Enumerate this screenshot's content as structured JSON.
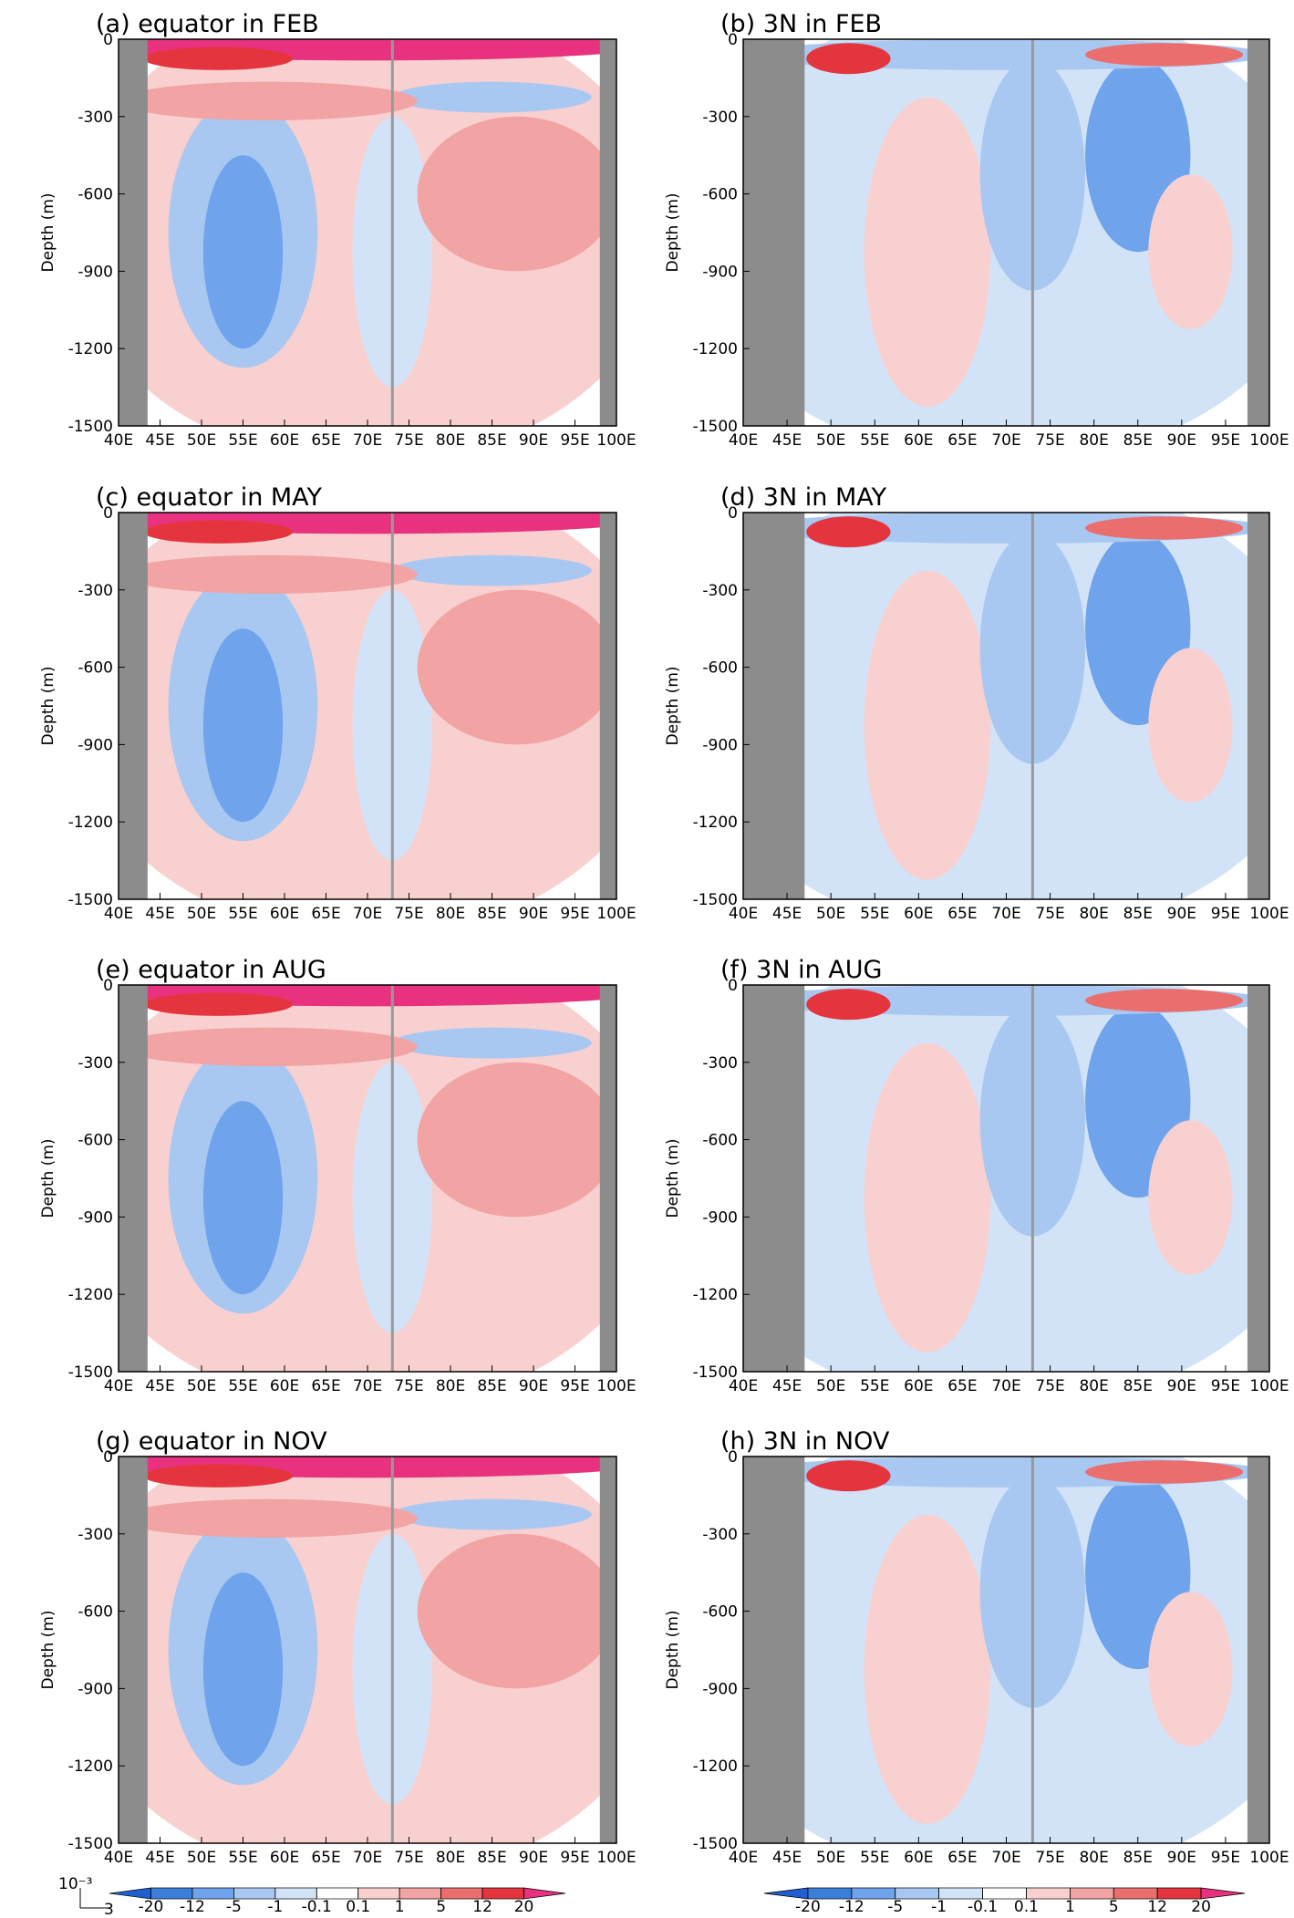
{
  "chart_data": [
    {
      "type": "contour",
      "title": "(a) equator in FEB",
      "ylabel": "Depth (m)",
      "xlim": [
        40,
        100
      ],
      "ylim": [
        -1500,
        0
      ],
      "xticks": [
        {
          "value": 40,
          "label": "40E"
        },
        {
          "value": 45,
          "label": "45E"
        },
        {
          "value": 50,
          "label": "50E"
        },
        {
          "value": 55,
          "label": "55E"
        },
        {
          "value": 60,
          "label": "60E"
        },
        {
          "value": 65,
          "label": "65E"
        },
        {
          "value": 70,
          "label": "70E"
        },
        {
          "value": 75,
          "label": "75E"
        },
        {
          "value": 80,
          "label": "80E"
        },
        {
          "value": 85,
          "label": "85E"
        },
        {
          "value": 90,
          "label": "90E"
        },
        {
          "value": 95,
          "label": "95E"
        },
        {
          "value": 100,
          "label": "100E"
        }
      ],
      "yticks": [
        0,
        -300,
        -600,
        -900,
        -1200,
        -1500
      ]
    },
    {
      "type": "contour",
      "title": "(b) 3N in FEB",
      "ylabel": "Depth (m)",
      "xlim": [
        40,
        100
      ],
      "ylim": [
        -1500,
        0
      ],
      "xticks": [
        {
          "value": 40,
          "label": "40E"
        },
        {
          "value": 45,
          "label": "45E"
        },
        {
          "value": 50,
          "label": "50E"
        },
        {
          "value": 55,
          "label": "55E"
        },
        {
          "value": 60,
          "label": "60E"
        },
        {
          "value": 65,
          "label": "65E"
        },
        {
          "value": 70,
          "label": "70E"
        },
        {
          "value": 75,
          "label": "75E"
        },
        {
          "value": 80,
          "label": "80E"
        },
        {
          "value": 85,
          "label": "85E"
        },
        {
          "value": 90,
          "label": "90E"
        },
        {
          "value": 95,
          "label": "95E"
        },
        {
          "value": 100,
          "label": "100E"
        }
      ],
      "yticks": [
        0,
        -300,
        -600,
        -900,
        -1200,
        -1500
      ]
    },
    {
      "type": "contour",
      "title": "(c) equator in MAY",
      "ylabel": "Depth (m)",
      "xlim": [
        40,
        100
      ],
      "ylim": [
        -1500,
        0
      ],
      "xticks": [
        {
          "value": 40,
          "label": "40E"
        },
        {
          "value": 45,
          "label": "45E"
        },
        {
          "value": 50,
          "label": "50E"
        },
        {
          "value": 55,
          "label": "55E"
        },
        {
          "value": 60,
          "label": "60E"
        },
        {
          "value": 65,
          "label": "65E"
        },
        {
          "value": 70,
          "label": "70E"
        },
        {
          "value": 75,
          "label": "75E"
        },
        {
          "value": 80,
          "label": "80E"
        },
        {
          "value": 85,
          "label": "85E"
        },
        {
          "value": 90,
          "label": "90E"
        },
        {
          "value": 95,
          "label": "95E"
        },
        {
          "value": 100,
          "label": "100E"
        }
      ],
      "yticks": [
        0,
        -300,
        -600,
        -900,
        -1200,
        -1500
      ]
    },
    {
      "type": "contour",
      "title": "(d) 3N in MAY",
      "ylabel": "Depth (m)",
      "xlim": [
        40,
        100
      ],
      "ylim": [
        -1500,
        0
      ],
      "xticks": [
        {
          "value": 40,
          "label": "40E"
        },
        {
          "value": 45,
          "label": "45E"
        },
        {
          "value": 50,
          "label": "50E"
        },
        {
          "value": 55,
          "label": "55E"
        },
        {
          "value": 60,
          "label": "60E"
        },
        {
          "value": 65,
          "label": "65E"
        },
        {
          "value": 70,
          "label": "70E"
        },
        {
          "value": 75,
          "label": "75E"
        },
        {
          "value": 80,
          "label": "80E"
        },
        {
          "value": 85,
          "label": "85E"
        },
        {
          "value": 90,
          "label": "90E"
        },
        {
          "value": 95,
          "label": "95E"
        },
        {
          "value": 100,
          "label": "100E"
        }
      ],
      "yticks": [
        0,
        -300,
        -600,
        -900,
        -1200,
        -1500
      ]
    },
    {
      "type": "contour",
      "title": "(e) equator in AUG",
      "ylabel": "Depth (m)",
      "xlim": [
        40,
        100
      ],
      "ylim": [
        -1500,
        0
      ],
      "xticks": [
        {
          "value": 40,
          "label": "40E"
        },
        {
          "value": 45,
          "label": "45E"
        },
        {
          "value": 50,
          "label": "50E"
        },
        {
          "value": 55,
          "label": "55E"
        },
        {
          "value": 60,
          "label": "60E"
        },
        {
          "value": 65,
          "label": "65E"
        },
        {
          "value": 70,
          "label": "70E"
        },
        {
          "value": 75,
          "label": "75E"
        },
        {
          "value": 80,
          "label": "80E"
        },
        {
          "value": 85,
          "label": "85E"
        },
        {
          "value": 90,
          "label": "90E"
        },
        {
          "value": 95,
          "label": "95E"
        },
        {
          "value": 100,
          "label": "100E"
        }
      ],
      "yticks": [
        0,
        -300,
        -600,
        -900,
        -1200,
        -1500
      ]
    },
    {
      "type": "contour",
      "title": "(f) 3N in AUG",
      "ylabel": "Depth (m)",
      "xlim": [
        40,
        100
      ],
      "ylim": [
        -1500,
        0
      ],
      "xticks": [
        {
          "value": 40,
          "label": "40E"
        },
        {
          "value": 45,
          "label": "45E"
        },
        {
          "value": 50,
          "label": "50E"
        },
        {
          "value": 55,
          "label": "55E"
        },
        {
          "value": 60,
          "label": "60E"
        },
        {
          "value": 65,
          "label": "65E"
        },
        {
          "value": 70,
          "label": "70E"
        },
        {
          "value": 75,
          "label": "75E"
        },
        {
          "value": 80,
          "label": "80E"
        },
        {
          "value": 85,
          "label": "85E"
        },
        {
          "value": 90,
          "label": "90E"
        },
        {
          "value": 95,
          "label": "95E"
        },
        {
          "value": 100,
          "label": "100E"
        }
      ],
      "yticks": [
        0,
        -300,
        -600,
        -900,
        -1200,
        -1500
      ]
    },
    {
      "type": "contour",
      "title": "(g) equator in NOV",
      "ylabel": "Depth (m)",
      "xlim": [
        40,
        100
      ],
      "ylim": [
        -1500,
        0
      ],
      "xticks": [
        {
          "value": 40,
          "label": "40E"
        },
        {
          "value": 45,
          "label": "45E"
        },
        {
          "value": 50,
          "label": "50E"
        },
        {
          "value": 55,
          "label": "55E"
        },
        {
          "value": 60,
          "label": "60E"
        },
        {
          "value": 65,
          "label": "65E"
        },
        {
          "value": 70,
          "label": "70E"
        },
        {
          "value": 75,
          "label": "75E"
        },
        {
          "value": 80,
          "label": "80E"
        },
        {
          "value": 85,
          "label": "85E"
        },
        {
          "value": 90,
          "label": "90E"
        },
        {
          "value": 95,
          "label": "95E"
        },
        {
          "value": 100,
          "label": "100E"
        }
      ],
      "yticks": [
        0,
        -300,
        -600,
        -900,
        -1200,
        -1500
      ]
    },
    {
      "type": "contour",
      "title": "(h) 3N in NOV",
      "ylabel": "Depth (m)",
      "xlim": [
        40,
        100
      ],
      "ylim": [
        -1500,
        0
      ],
      "xticks": [
        {
          "value": 40,
          "label": "40E"
        },
        {
          "value": 45,
          "label": "45E"
        },
        {
          "value": 50,
          "label": "50E"
        },
        {
          "value": 55,
          "label": "55E"
        },
        {
          "value": 60,
          "label": "60E"
        },
        {
          "value": 65,
          "label": "65E"
        },
        {
          "value": 70,
          "label": "70E"
        },
        {
          "value": 75,
          "label": "75E"
        },
        {
          "value": 80,
          "label": "80E"
        },
        {
          "value": 85,
          "label": "85E"
        },
        {
          "value": 90,
          "label": "90E"
        },
        {
          "value": 95,
          "label": "95E"
        },
        {
          "value": 100,
          "label": "100E"
        }
      ],
      "yticks": [
        0,
        -300,
        -600,
        -900,
        -1200,
        -1500
      ]
    }
  ],
  "colorbar": {
    "levels": [
      -20,
      -12,
      -5,
      -1,
      -0.1,
      0.1,
      1,
      5,
      12,
      20
    ],
    "colors": [
      "#1f5fd0",
      "#3b7fdb",
      "#6fa4ec",
      "#a8c8f2",
      "#d2e3f7",
      "#ffffff",
      "#f9d0d0",
      "#f2a3a3",
      "#eb6e6e",
      "#e4353f",
      "#e8327f"
    ]
  },
  "vector_scale_unit": "10⁻³",
  "vector_scale": 3
}
